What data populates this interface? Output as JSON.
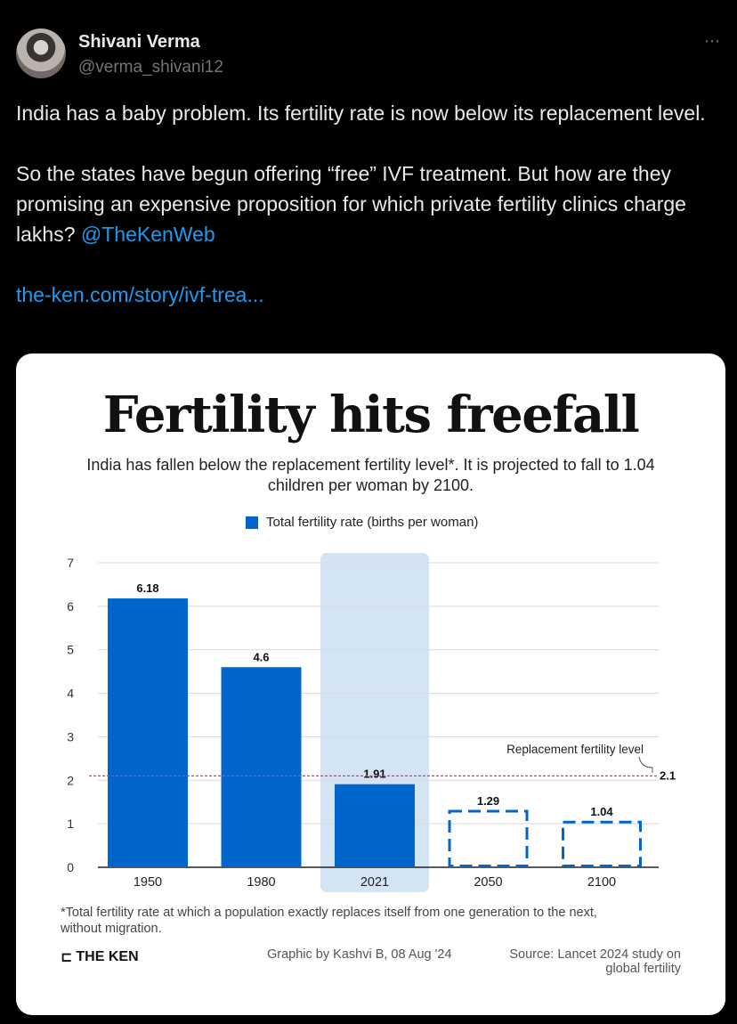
{
  "tweet": {
    "display_name": "Shivani Verma",
    "handle": "@verma_shivani12",
    "more_icon": "⋯",
    "text_line1": "India has a baby problem. Its fertility rate is now below its replacement level.",
    "text_line2_prefix": "So the states have begun offering “free” IVF treatment. But how are they promising an expensive proposition for which private fertility clinics charge lakhs? ",
    "mention": "@TheKenWeb",
    "link": "the-ken.com/story/ivf-trea..."
  },
  "card": {
    "title": "Fertility hits freefall",
    "subtitle": "India has fallen below the replacement fertility level*. It is projected to fall to 1.04 children per woman by 2100.",
    "legend_label": "Total fertility rate (births per woman)",
    "footnote": "*Total fertility rate at which a population exactly replaces itself from one generation to the next, without migration.",
    "brand": "THE KEN",
    "brand_mark": "⊏",
    "credit": "Graphic by Kashvi B, 08 Aug '24",
    "source": "Source: Lancet 2024 study on global fertility"
  },
  "colors": {
    "bar": "#0066cc",
    "highlight": "#d3e4f5",
    "replacement_line": "#e0338f",
    "link": "#1d9bf0"
  },
  "chart_data": {
    "type": "bar",
    "title": "Fertility hits freefall",
    "categories": [
      "1950",
      "1980",
      "2021",
      "2050",
      "2100"
    ],
    "values": [
      6.18,
      4.6,
      1.91,
      1.29,
      1.04
    ],
    "value_labels": [
      "6.18",
      "4.6",
      "1.91",
      "1.29",
      "1.04"
    ],
    "projected": [
      false,
      false,
      false,
      true,
      true
    ],
    "highlighted_category": "2021",
    "series_name": "Total fertility rate (births per woman)",
    "ylim": [
      0,
      7
    ],
    "yticks": [
      "0",
      "1",
      "2",
      "3",
      "4",
      "5",
      "6",
      "7"
    ],
    "reference_line": {
      "value": 2.1,
      "label": "2.1",
      "name": "Replacement fertility level"
    },
    "grid": true,
    "legend": "top-center"
  }
}
